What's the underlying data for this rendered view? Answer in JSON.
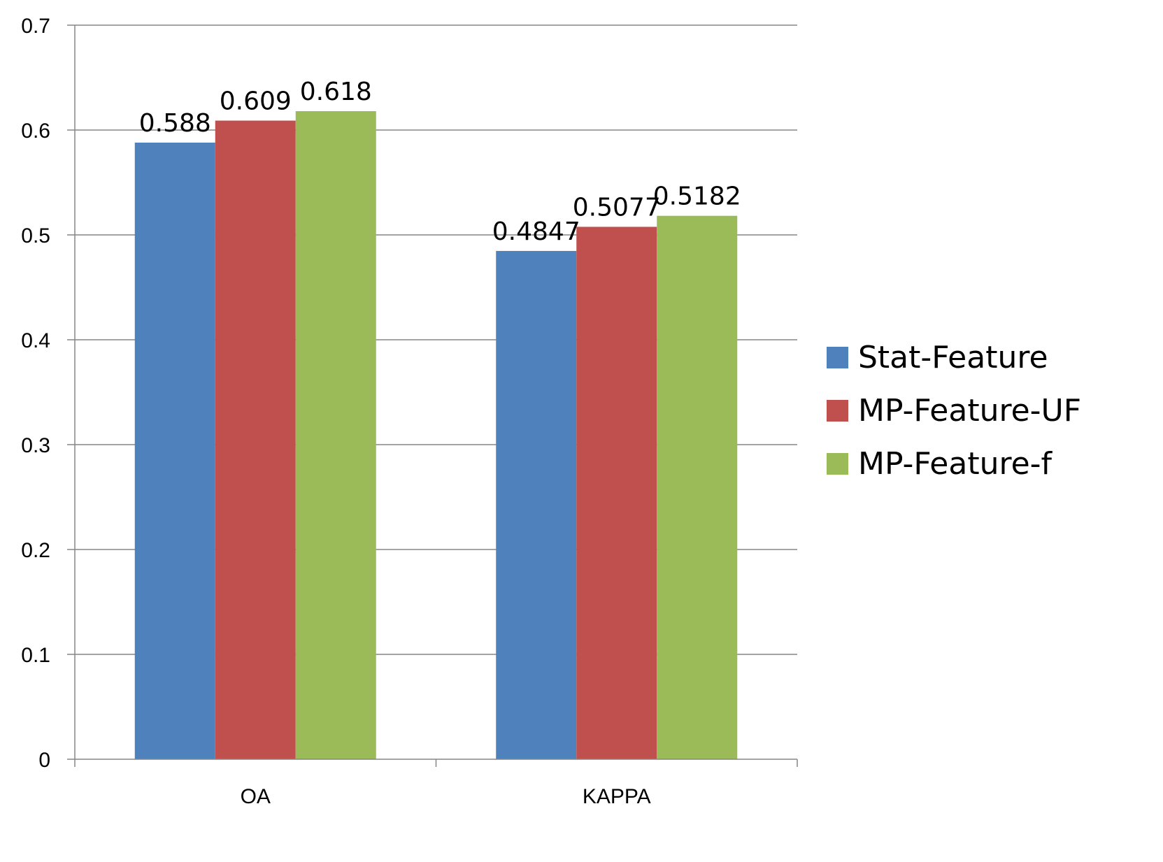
{
  "chart_data": {
    "type": "bar",
    "title": "",
    "xlabel": "",
    "ylabel": "",
    "categories": [
      "OA",
      "KAPPA"
    ],
    "series": [
      {
        "name": "Stat-Feature",
        "color": "#4F81BD",
        "values": [
          0.588,
          0.4847
        ],
        "labels": [
          "0.588",
          "0.4847"
        ]
      },
      {
        "name": "MP-Feature-UF",
        "color": "#C0504D",
        "values": [
          0.609,
          0.5077
        ],
        "labels": [
          "0.609",
          "0.5077"
        ]
      },
      {
        "name": "MP-Feature-f",
        "color": "#9BBB59",
        "values": [
          0.618,
          0.5182
        ],
        "labels": [
          "0.618",
          "0.5182"
        ]
      }
    ],
    "ylim": [
      0,
      0.7
    ],
    "yticks": [
      "0",
      "0.1",
      "0.2",
      "0.3",
      "0.4",
      "0.5",
      "0.6",
      "0.7"
    ],
    "grid": true,
    "legend_position": "right"
  }
}
